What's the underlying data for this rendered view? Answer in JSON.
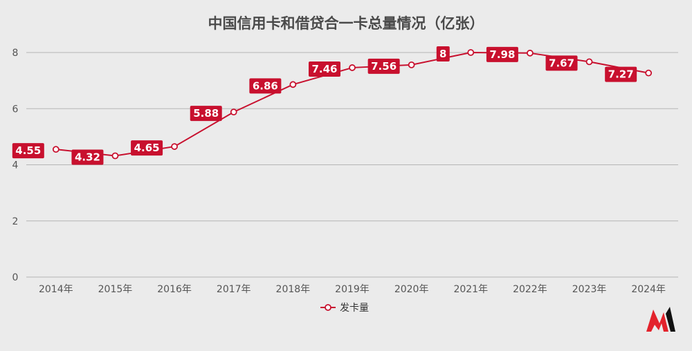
{
  "chart_data": {
    "type": "line",
    "title": "中国信用卡和借贷合一卡总量情况（亿张）",
    "categories": [
      "2014年",
      "2015年",
      "2016年",
      "2017年",
      "2018年",
      "2019年",
      "2020年",
      "2021年",
      "2022年",
      "2023年",
      "2024年"
    ],
    "series": [
      {
        "name": "发卡量",
        "values": [
          4.55,
          4.32,
          4.65,
          5.88,
          6.86,
          7.46,
          7.56,
          8,
          7.98,
          7.67,
          7.27
        ]
      }
    ],
    "data_labels": [
      "4.55",
      "4.32",
      "4.65",
      "5.88",
      "6.86",
      "7.46",
      "7.56",
      "8",
      "7.98",
      "7.67",
      "7.27"
    ],
    "ylim": [
      0,
      8
    ],
    "yticks": [
      0,
      2,
      4,
      6,
      8
    ],
    "grid": true,
    "legend_position": "bottom"
  },
  "colors": {
    "series": "#c8102e",
    "background": "#ebebeb",
    "grid": "#b5b5b5"
  },
  "logo": {
    "name": "m-logo"
  }
}
